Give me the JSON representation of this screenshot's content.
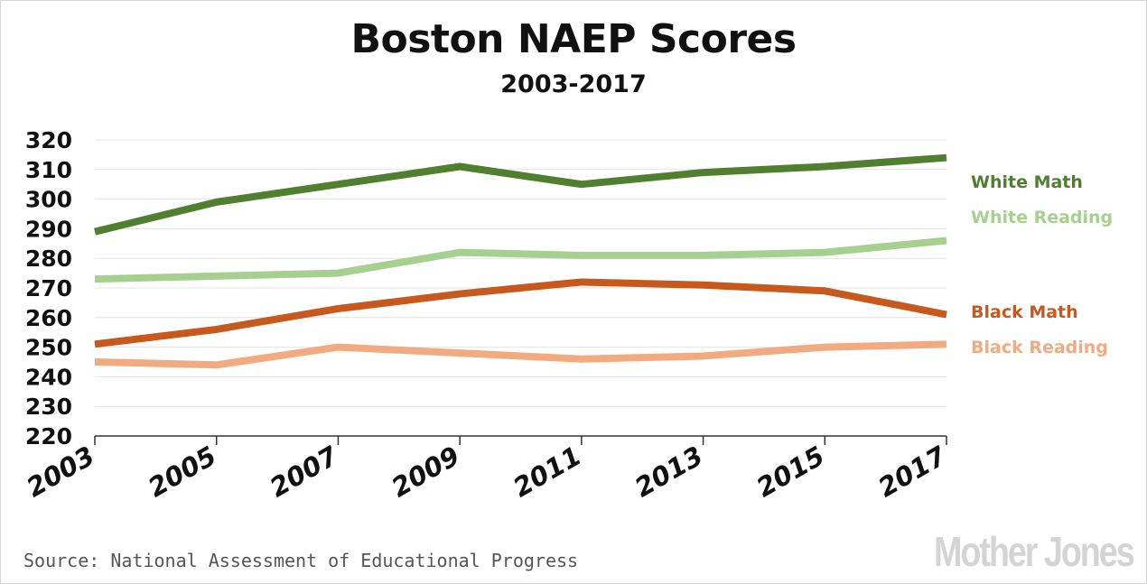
{
  "chart_data": {
    "type": "line",
    "title": "Boston NAEP Scores",
    "subtitle": "2003-2017",
    "xlabel": "",
    "ylabel": "",
    "x": [
      "2003",
      "2005",
      "2007",
      "2009",
      "2011",
      "2013",
      "2015",
      "2017"
    ],
    "ylim": [
      220,
      320
    ],
    "yticks": [
      220,
      230,
      240,
      250,
      260,
      270,
      280,
      290,
      300,
      310,
      320
    ],
    "grid": true,
    "legend": "right, inline labels",
    "series": [
      {
        "name": "White Math",
        "color": "#4f7f2f",
        "values": [
          289,
          299,
          305,
          311,
          305,
          309,
          311,
          314
        ]
      },
      {
        "name": "White Reading",
        "color": "#a6d08f",
        "values": [
          273,
          274,
          275,
          282,
          281,
          281,
          282,
          286
        ]
      },
      {
        "name": "Black Math",
        "color": "#c8591c",
        "values": [
          251,
          256,
          263,
          268,
          272,
          271,
          269,
          261
        ]
      },
      {
        "name": "Black Reading",
        "color": "#f2aa80",
        "values": [
          245,
          244,
          250,
          248,
          246,
          247,
          250,
          251
        ]
      }
    ]
  },
  "source": "Source: National Assessment of Educational Progress",
  "logo": "Mother Jones"
}
